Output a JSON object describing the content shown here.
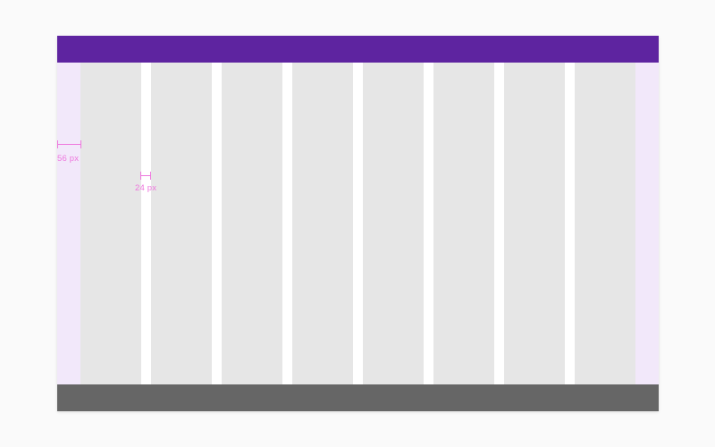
{
  "colors": {
    "page_background": "#fafafa",
    "top_bar": "#5e24a0",
    "bottom_bar": "#666666",
    "margin_fill": "#f2e8fa",
    "column_fill": "#e6e6e6",
    "gutter_fill": "#ffffff",
    "annotation": "#ee77dd"
  },
  "grid": {
    "column_count": 8
  },
  "annotations": {
    "margin_label": "56 px",
    "gutter_label": "24 px"
  }
}
